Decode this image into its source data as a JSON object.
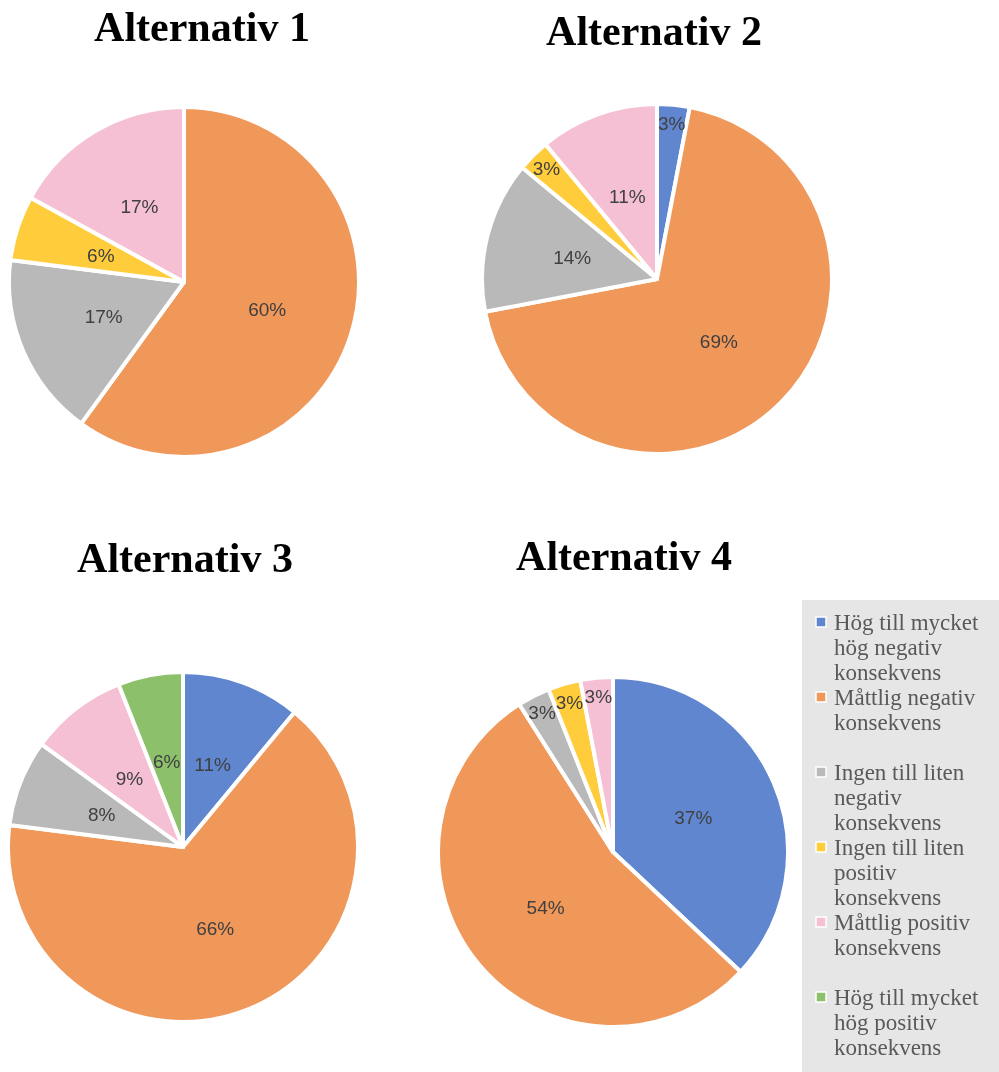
{
  "chart_data": [
    {
      "type": "pie",
      "title": "Alternativ 1",
      "values": [
        60,
        17,
        6,
        17
      ],
      "colors": [
        "#f0975a",
        "#b9b9b9",
        "#ffcd3c",
        "#f5c0d4"
      ],
      "value_labels": [
        "60%",
        "17%",
        "6%",
        "17%"
      ]
    },
    {
      "type": "pie",
      "title": "Alternativ 2",
      "values": [
        3,
        69,
        14,
        3,
        11
      ],
      "colors": [
        "#5f86cf",
        "#f0975a",
        "#b9b9b9",
        "#ffcd3c",
        "#f5c0d4"
      ],
      "value_labels": [
        "3%",
        "69%",
        "14%",
        "3%",
        "11%"
      ]
    },
    {
      "type": "pie",
      "title": "Alternativ 3",
      "values": [
        11,
        66,
        8,
        9,
        6
      ],
      "colors": [
        "#5f86cf",
        "#f0975a",
        "#b9b9b9",
        "#f5c0d4",
        "#8cc06b"
      ],
      "value_labels": [
        "11%",
        "66%",
        "8%",
        "9%",
        "6%"
      ]
    },
    {
      "type": "pie",
      "title": "Alternativ 4",
      "categories": [
        "Hög till mycket hög negativ konsekvens",
        "Måttlig negativ konsekvens",
        "Ingen till liten negativ konsekvens",
        "Ingen till liten positiv konsekvens",
        "Måttlig positiv konsekvens",
        "Hög till mycket hög positiv konsekvens"
      ],
      "values": [
        37,
        54,
        3,
        3,
        3,
        0
      ],
      "colors": [
        "#5f86cf",
        "#f0975a",
        "#b9b9b9",
        "#ffcd3c",
        "#f5c0d4",
        "#8cc06b"
      ],
      "value_labels": [
        "37%",
        "54%",
        "3%",
        "3%",
        "3%",
        null
      ],
      "legend": "right"
    }
  ]
}
